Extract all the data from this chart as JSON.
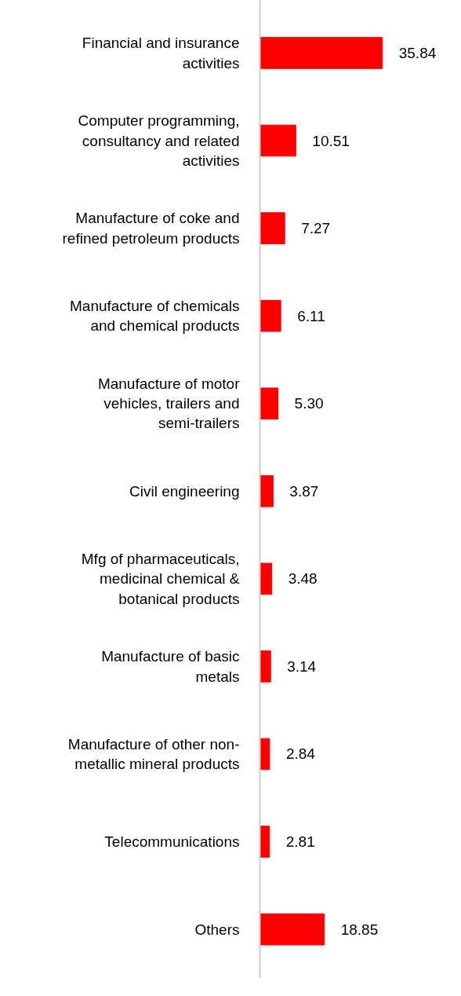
{
  "chart_data": {
    "type": "bar",
    "orientation": "horizontal",
    "categories": [
      "Financial and insurance activities",
      "Computer programming, consultancy and related activities",
      "Manufacture of coke and refined petroleum products",
      "Manufacture of chemicals and chemical products",
      "Manufacture of motor vehicles, trailers and semi-trailers",
      "Civil engineering",
      "Mfg of pharmaceuticals, medicinal chemical & botanical products",
      "Manufacture of basic metals",
      "Manufacture of other non-metallic mineral products",
      "Telecommunications",
      "Others"
    ],
    "values": [
      35.84,
      10.51,
      7.27,
      6.11,
      5.3,
      3.87,
      3.48,
      3.14,
      2.84,
      2.81,
      18.85
    ],
    "value_labels": [
      "35.84",
      "10.51",
      "7.27",
      "6.11",
      "5.30",
      "3.87",
      "3.48",
      "3.14",
      "2.84",
      "2.81",
      "18.85"
    ],
    "color": "#ff0000",
    "grid": false
  }
}
